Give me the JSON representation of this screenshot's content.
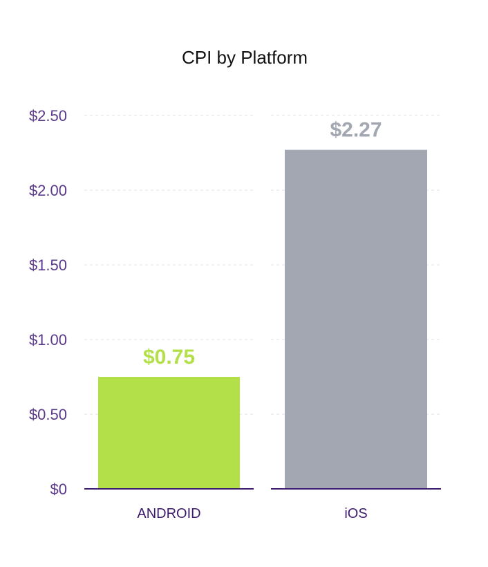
{
  "chart_data": {
    "type": "bar",
    "title": "CPI by Platform",
    "xlabel": "",
    "ylabel": "",
    "categories": [
      "ANDROID",
      "iOS"
    ],
    "values": [
      0.75,
      2.27
    ],
    "data_labels": [
      "$0.75",
      "$2.27"
    ],
    "bar_colors": [
      "#b3df49",
      "#a2a7b2"
    ],
    "ylim": [
      0,
      2.5
    ],
    "y_ticks": [
      {
        "value": 0,
        "label": "$0"
      },
      {
        "value": 0.5,
        "label": "$0.50"
      },
      {
        "value": 1.0,
        "label": "$1.00"
      },
      {
        "value": 1.5,
        "label": "$1.50"
      },
      {
        "value": 2.0,
        "label": "$2.00"
      },
      {
        "value": 2.5,
        "label": "$2.50"
      }
    ],
    "grid": true,
    "legend": "none"
  }
}
